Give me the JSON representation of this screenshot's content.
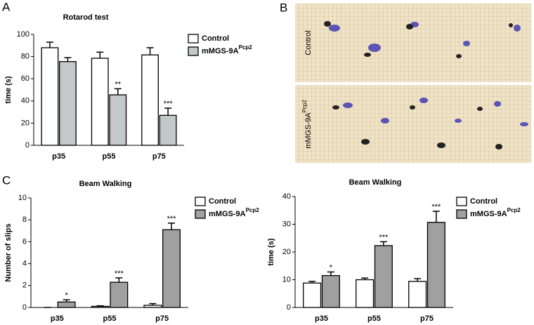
{
  "panel_letters": [
    "A",
    "B",
    "C"
  ],
  "panel_b": {
    "labels": [
      {
        "text": "Control"
      },
      {
        "text": "mMGS-9A",
        "superscript": "Pcp2"
      }
    ]
  },
  "chart_data": [
    {
      "type": "bar",
      "title": "Rotarod test",
      "y_label": "time (s)",
      "categories": [
        "p35",
        "p55",
        "p75"
      ],
      "series": [
        {
          "name": "Control",
          "color": "#ffffff",
          "values": [
            88,
            78.5,
            81.5
          ],
          "errors": [
            5,
            5.5,
            6.5
          ],
          "annotations": [
            null,
            null,
            null
          ]
        },
        {
          "name": "mMGS-9A",
          "name_superscript": "Pcp2",
          "color": "#c3c8c8",
          "values": [
            75.5,
            45.5,
            27
          ],
          "errors": [
            3.5,
            5.5,
            6.5
          ],
          "annotations": [
            null,
            "**",
            "***"
          ]
        }
      ],
      "ylim": [
        0,
        100
      ],
      "yticks": [
        0,
        20,
        40,
        60,
        80,
        100
      ]
    },
    {
      "type": "bar",
      "title": "Beam Walking",
      "y_label": "Number of slips",
      "categories": [
        "p35",
        "p55",
        "p75"
      ],
      "series": [
        {
          "name": "Control",
          "color": "#ffffff",
          "values": [
            0,
            0.1,
            0.2
          ],
          "errors": [
            0,
            0.05,
            0.15
          ],
          "annotations": [
            null,
            null,
            null
          ]
        },
        {
          "name": "mMGS-9A",
          "name_superscript": "Pcp2",
          "color": "#a0a0a0",
          "values": [
            0.5,
            2.3,
            7.1
          ],
          "errors": [
            0.2,
            0.4,
            0.6
          ],
          "annotations": [
            "*",
            "***",
            "***"
          ]
        }
      ],
      "ylim": [
        0,
        10
      ],
      "yticks": [
        0,
        2,
        4,
        6,
        8,
        10
      ]
    },
    {
      "type": "bar",
      "title": "Beam Walking",
      "y_label": "time (s)",
      "categories": [
        "p35",
        "p55",
        "p75"
      ],
      "series": [
        {
          "name": "Control",
          "color": "#ffffff",
          "values": [
            8.8,
            10,
            9.4
          ],
          "errors": [
            0.6,
            0.6,
            1
          ],
          "annotations": [
            null,
            null,
            null
          ]
        },
        {
          "name": "mMGS-9A",
          "name_superscript": "Pcp2",
          "color": "#a0a0a0",
          "values": [
            11.5,
            22.3,
            30.7
          ],
          "errors": [
            1.3,
            1.4,
            4
          ],
          "annotations": [
            "*",
            "***",
            "***"
          ]
        }
      ],
      "ylim": [
        0,
        40
      ],
      "yticks": [
        0,
        10,
        20,
        30,
        40
      ]
    }
  ]
}
